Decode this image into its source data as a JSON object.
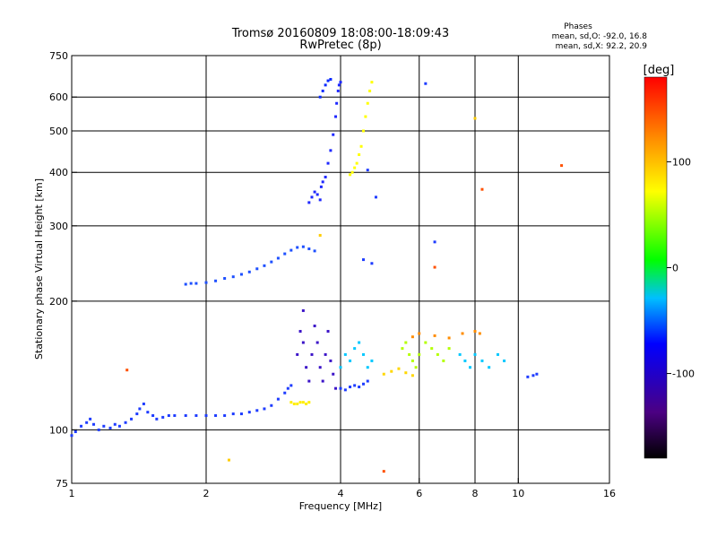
{
  "chart_data": {
    "type": "scatter",
    "title_line1": "Tromsø 20160809 18:08:00-18:09:43",
    "title_line2": "RwPretec (8p)",
    "xlabel": "Frequency [MHz]",
    "ylabel": "Stationary phase Virtual Height [km]",
    "x_scale": "log",
    "y_scale": "log",
    "xlim": [
      1,
      16
    ],
    "ylim": [
      75,
      750
    ],
    "x_ticks": [
      1,
      2,
      4,
      6,
      8,
      10,
      16
    ],
    "y_ticks": [
      75,
      100,
      200,
      300,
      400,
      500,
      600,
      750
    ],
    "grid_x": [
      2,
      4,
      6,
      8,
      10
    ],
    "grid_y": [
      100,
      200,
      300,
      400,
      500,
      600
    ],
    "phase_info": {
      "title": "Phases",
      "line1": "mean, sd,O: -92.0, 16.8",
      "line2": "mean, sd,X:  92.2, 20.9"
    },
    "colorbar": {
      "label": "[deg]",
      "range": [
        -180,
        180
      ],
      "ticks": [
        100,
        0,
        -100
      ],
      "colors": [
        "#000000",
        "#4b0082",
        "#0000ff",
        "#00bfff",
        "#00ff00",
        "#ffff00",
        "#ff8c00",
        "#ff0000"
      ]
    },
    "series": [
      {
        "color": "#1e3cff",
        "points": [
          [
            1.0,
            97
          ],
          [
            1.02,
            99
          ],
          [
            1.05,
            102
          ],
          [
            1.08,
            104
          ],
          [
            1.1,
            106
          ],
          [
            1.12,
            103
          ],
          [
            1.15,
            100
          ],
          [
            1.18,
            102
          ],
          [
            1.22,
            101
          ],
          [
            1.25,
            103
          ],
          [
            1.28,
            102
          ],
          [
            1.32,
            104
          ],
          [
            1.36,
            106
          ],
          [
            1.4,
            109
          ],
          [
            1.42,
            112
          ],
          [
            1.45,
            115
          ],
          [
            1.48,
            110
          ],
          [
            1.52,
            108
          ],
          [
            1.55,
            106
          ],
          [
            1.6,
            107
          ],
          [
            1.65,
            108
          ],
          [
            1.7,
            108
          ],
          [
            1.8,
            108
          ],
          [
            1.9,
            108
          ],
          [
            2.0,
            108
          ],
          [
            2.1,
            108
          ],
          [
            2.2,
            108
          ],
          [
            2.3,
            109
          ],
          [
            2.4,
            109
          ],
          [
            2.5,
            110
          ],
          [
            2.6,
            111
          ],
          [
            2.7,
            112
          ],
          [
            2.8,
            114
          ],
          [
            2.9,
            118
          ],
          [
            3.0,
            122
          ],
          [
            3.05,
            125
          ],
          [
            3.1,
            127
          ]
        ]
      },
      {
        "color": "#1e50ff",
        "points": [
          [
            1.8,
            219
          ],
          [
            1.85,
            220
          ],
          [
            1.9,
            220
          ],
          [
            2.0,
            221
          ],
          [
            2.1,
            223
          ],
          [
            2.2,
            226
          ],
          [
            2.3,
            228
          ],
          [
            2.4,
            231
          ],
          [
            2.5,
            234
          ],
          [
            2.6,
            238
          ],
          [
            2.7,
            242
          ],
          [
            2.8,
            247
          ],
          [
            2.9,
            252
          ],
          [
            3.0,
            258
          ],
          [
            3.1,
            263
          ],
          [
            3.2,
            267
          ],
          [
            3.3,
            268
          ],
          [
            3.4,
            265
          ],
          [
            3.5,
            262
          ]
        ]
      },
      {
        "color": "#3c14c8",
        "points": [
          [
            3.2,
            150
          ],
          [
            3.25,
            170
          ],
          [
            3.3,
            190
          ],
          [
            3.3,
            160
          ],
          [
            3.35,
            140
          ],
          [
            3.4,
            130
          ],
          [
            3.45,
            150
          ],
          [
            3.5,
            175
          ],
          [
            3.55,
            160
          ],
          [
            3.6,
            140
          ],
          [
            3.65,
            130
          ],
          [
            3.7,
            150
          ],
          [
            3.75,
            170
          ],
          [
            3.8,
            145
          ],
          [
            3.85,
            135
          ],
          [
            3.9,
            125
          ]
        ]
      },
      {
        "color": "#1e28ff",
        "points": [
          [
            3.4,
            340
          ],
          [
            3.45,
            350
          ],
          [
            3.5,
            360
          ],
          [
            3.55,
            355
          ],
          [
            3.6,
            345
          ],
          [
            3.62,
            370
          ],
          [
            3.65,
            380
          ],
          [
            3.7,
            390
          ],
          [
            3.75,
            420
          ],
          [
            3.8,
            450
          ],
          [
            3.85,
            490
          ],
          [
            3.9,
            540
          ],
          [
            3.92,
            580
          ],
          [
            3.95,
            620
          ],
          [
            3.97,
            640
          ],
          [
            4.0,
            650
          ]
        ]
      },
      {
        "color": "#0a2aff",
        "points": [
          [
            3.6,
            600
          ],
          [
            3.65,
            620
          ],
          [
            3.7,
            640
          ],
          [
            3.75,
            655
          ],
          [
            3.8,
            660
          ]
        ]
      },
      {
        "color": "#ffff00",
        "points": [
          [
            4.2,
            395
          ],
          [
            4.25,
            400
          ],
          [
            4.3,
            410
          ],
          [
            4.35,
            420
          ],
          [
            4.4,
            440
          ],
          [
            4.45,
            460
          ],
          [
            4.5,
            500
          ],
          [
            4.55,
            540
          ],
          [
            4.6,
            580
          ],
          [
            4.65,
            620
          ],
          [
            4.7,
            650
          ]
        ]
      },
      {
        "color": "#ffee00",
        "points": [
          [
            3.1,
            116
          ],
          [
            3.15,
            115
          ],
          [
            3.2,
            115
          ],
          [
            3.25,
            116
          ],
          [
            3.3,
            116
          ],
          [
            3.35,
            115
          ],
          [
            3.4,
            116
          ]
        ]
      },
      {
        "color": "#00c8ff",
        "points": [
          [
            4.0,
            140
          ],
          [
            4.1,
            150
          ],
          [
            4.2,
            145
          ],
          [
            4.3,
            155
          ],
          [
            4.4,
            160
          ],
          [
            4.5,
            150
          ],
          [
            4.6,
            140
          ],
          [
            4.7,
            145
          ]
        ]
      },
      {
        "color": "#1e3cff",
        "points": [
          [
            4.0,
            125
          ],
          [
            4.1,
            124
          ],
          [
            4.2,
            126
          ],
          [
            4.3,
            127
          ],
          [
            4.4,
            126
          ],
          [
            4.5,
            128
          ],
          [
            4.6,
            130
          ]
        ]
      },
      {
        "color": "#b4ff00",
        "points": [
          [
            5.5,
            155
          ],
          [
            5.6,
            160
          ],
          [
            5.7,
            150
          ],
          [
            5.8,
            145
          ],
          [
            5.9,
            140
          ],
          [
            6.0,
            150
          ],
          [
            6.2,
            160
          ],
          [
            6.4,
            155
          ],
          [
            6.6,
            150
          ],
          [
            6.8,
            145
          ],
          [
            7.0,
            155
          ]
        ]
      },
      {
        "color": "#ff8c00",
        "points": [
          [
            5.8,
            165
          ],
          [
            6.0,
            168
          ],
          [
            6.5,
            166
          ],
          [
            7.0,
            164
          ],
          [
            7.5,
            168
          ],
          [
            8.0,
            170
          ],
          [
            8.2,
            168
          ]
        ]
      },
      {
        "color": "#00c8ff",
        "points": [
          [
            7.4,
            150
          ],
          [
            7.6,
            145
          ],
          [
            7.8,
            140
          ],
          [
            8.0,
            150
          ],
          [
            8.3,
            145
          ],
          [
            8.6,
            140
          ],
          [
            9.0,
            150
          ],
          [
            9.3,
            145
          ]
        ]
      },
      {
        "color": "#1e3cff",
        "points": [
          [
            10.5,
            133
          ],
          [
            10.8,
            134
          ],
          [
            11.0,
            135
          ]
        ]
      },
      {
        "color": "#ffd700",
        "points": [
          [
            5.0,
            135
          ],
          [
            5.2,
            137
          ],
          [
            5.4,
            139
          ],
          [
            5.6,
            136
          ],
          [
            5.8,
            134
          ]
        ]
      },
      {
        "color": "#ff5000",
        "points": [
          [
            1.33,
            138
          ],
          [
            6.5,
            240
          ],
          [
            8.3,
            365
          ],
          [
            12.5,
            415
          ],
          [
            5.0,
            80
          ]
        ]
      },
      {
        "color": "#1e3cff",
        "points": [
          [
            6.2,
            645
          ],
          [
            4.6,
            405
          ],
          [
            4.8,
            350
          ],
          [
            6.5,
            275
          ],
          [
            4.5,
            250
          ],
          [
            4.7,
            245
          ]
        ]
      },
      {
        "color": "#ffcc00",
        "points": [
          [
            2.25,
            85
          ],
          [
            8.0,
            535
          ],
          [
            3.6,
            285
          ]
        ]
      }
    ]
  }
}
